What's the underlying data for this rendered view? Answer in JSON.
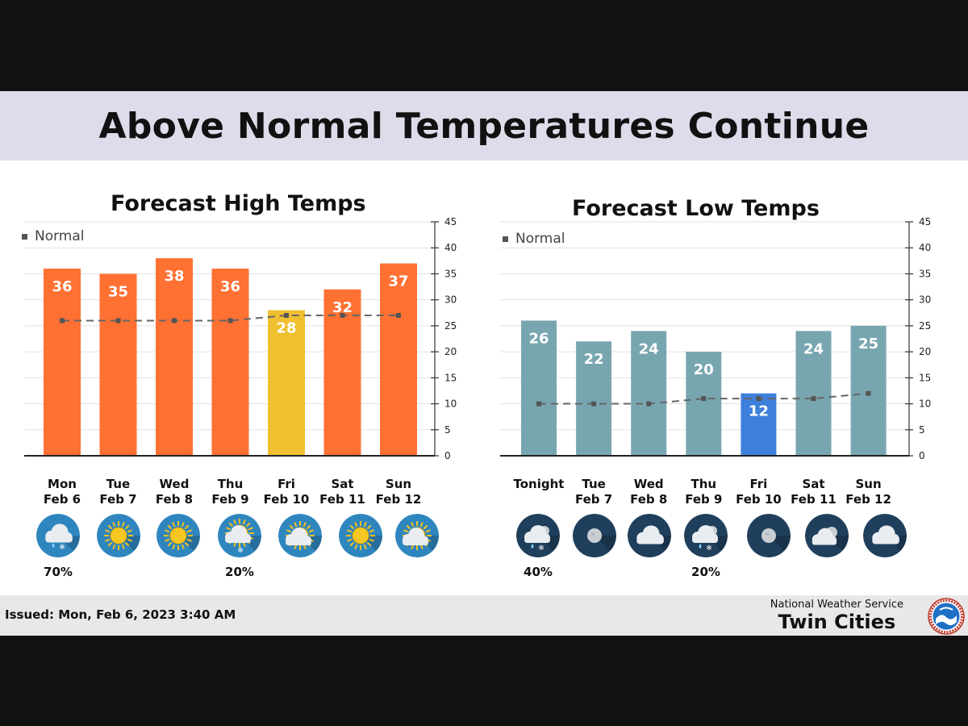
{
  "page": {
    "title": "Above Normal Temperatures Continue",
    "issued": "Issued: Mon, Feb 6, 2023 3:40 AM",
    "office_agency": "National Weather Service",
    "office_name": "Twin Cities",
    "logo_text": "NATIONAL WEATHER SERVICE"
  },
  "chart_data": [
    {
      "type": "bar",
      "title": "Forecast High Temps",
      "legend": "Normal",
      "legend_position": "top-left",
      "grid": true,
      "ylim": [
        0,
        45
      ],
      "yticks": [
        0,
        5,
        10,
        15,
        20,
        25,
        30,
        35,
        40,
        45
      ],
      "categories": [
        {
          "day": "Mon",
          "date": "Feb 6"
        },
        {
          "day": "Tue",
          "date": "Feb 7"
        },
        {
          "day": "Wed",
          "date": "Feb 8"
        },
        {
          "day": "Thu",
          "date": "Feb 9"
        },
        {
          "day": "Fri",
          "date": "Feb 10"
        },
        {
          "day": "Sat",
          "date": "Feb 11"
        },
        {
          "day": "Sun",
          "date": "Feb 12"
        }
      ],
      "values": [
        36,
        35,
        38,
        36,
        28,
        32,
        37
      ],
      "bar_colors": [
        "#ff7033",
        "#ff7033",
        "#ff7033",
        "#ff7033",
        "#f0c030",
        "#ff7033",
        "#ff7033"
      ],
      "normal_values": [
        26,
        26,
        26,
        26,
        27,
        27,
        27
      ],
      "normal_color": "#666666",
      "icons": [
        "cloudy-snow-icon",
        "sunny-icon",
        "sunny-icon",
        "partly-sunny-snow-icon",
        "partly-sunny-icon",
        "sunny-icon",
        "partly-sunny-icon"
      ],
      "precip_chance": [
        "70%",
        "",
        "",
        "20%",
        "",
        "",
        ""
      ]
    },
    {
      "type": "bar",
      "title": "Forecast Low Temps",
      "legend": "Normal",
      "legend_position": "top-left",
      "grid": true,
      "ylim": [
        0,
        45
      ],
      "yticks": [
        0,
        5,
        10,
        15,
        20,
        25,
        30,
        35,
        40,
        45
      ],
      "categories": [
        {
          "day": "Tonight",
          "date": ""
        },
        {
          "day": "Tue",
          "date": "Feb 7"
        },
        {
          "day": "Wed",
          "date": "Feb 8"
        },
        {
          "day": "Thu",
          "date": "Feb 9"
        },
        {
          "day": "Fri",
          "date": "Feb 10"
        },
        {
          "day": "Sat",
          "date": "Feb 11"
        },
        {
          "day": "Sun",
          "date": "Feb 12"
        }
      ],
      "values": [
        26,
        22,
        24,
        20,
        12,
        24,
        25
      ],
      "bar_colors": [
        "#78a6b0",
        "#78a6b0",
        "#78a6b0",
        "#78a6b0",
        "#3f7fdc",
        "#78a6b0",
        "#78a6b0"
      ],
      "normal_values": [
        10,
        10,
        10,
        11,
        11,
        11,
        12
      ],
      "normal_color": "#666666",
      "icons": [
        "night-cloudy-snow-icon",
        "night-moon-icon",
        "night-cloudy-icon",
        "night-cloudy-snow-icon",
        "night-moon-icon",
        "night-partly-cloudy-icon",
        "night-cloudy-icon"
      ],
      "precip_chance": [
        "40%",
        "",
        "",
        "20%",
        "",
        "",
        ""
      ]
    }
  ]
}
